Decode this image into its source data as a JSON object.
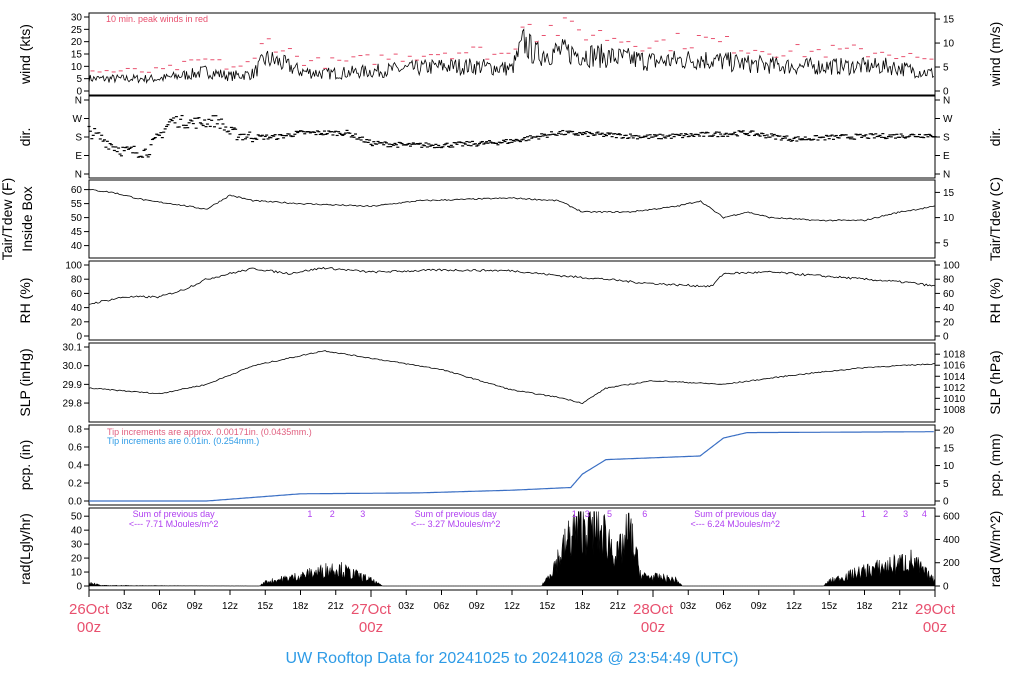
{
  "title": "UW Rooftop Data for 20241025  to  20241028 @ 23:54:49  (UTC)",
  "colors": {
    "peak": "#e8506e",
    "pcp_line": "#3a6fc4",
    "pcp_note_red": "#e06080",
    "pcp_note_blue": "#2e9be6",
    "rad_note": "#b040f0",
    "date_label": "#e8506e",
    "title": "#2e9be6"
  },
  "chart_data": [
    {
      "type": "line",
      "id": "wind",
      "ylabel": "wind (kts)",
      "ylabel_right": "wind (m/s)",
      "ylim": [
        0,
        30
      ],
      "yticks": [
        0,
        5,
        10,
        15,
        20,
        25,
        30
      ],
      "ylim_right": [
        0,
        15
      ],
      "yticks_right": [
        0,
        5,
        10,
        15
      ],
      "annotation": "10 min. peak winds in red",
      "x": [
        0,
        6,
        9,
        10,
        12,
        14,
        15,
        16,
        18,
        20,
        24,
        27,
        30,
        33,
        36,
        37,
        38,
        40,
        44,
        48,
        52,
        56,
        60,
        64,
        68,
        72
      ],
      "values": [
        5,
        5,
        7,
        8,
        6,
        7,
        13,
        12,
        8,
        7,
        8,
        9,
        10,
        10,
        9,
        20,
        15,
        16,
        14,
        12,
        13,
        11,
        10,
        10,
        10,
        7
      ]
    },
    {
      "type": "scatter",
      "id": "dir",
      "ylabel": "dir.",
      "ylabel_right": "dir.",
      "ylim": [
        0,
        360
      ],
      "yticks_labels": [
        "N",
        "E",
        "S",
        "W",
        "N"
      ],
      "x": [
        0,
        2,
        3,
        5,
        7,
        9,
        11,
        12,
        14,
        16,
        18,
        22,
        24,
        27,
        30,
        34,
        36,
        40,
        44,
        48,
        52,
        56,
        60,
        64,
        68,
        72
      ],
      "values": [
        210,
        140,
        110,
        110,
        260,
        250,
        260,
        200,
        180,
        180,
        200,
        200,
        150,
        140,
        140,
        150,
        160,
        200,
        190,
        180,
        190,
        200,
        170,
        180,
        185,
        190
      ]
    },
    {
      "type": "line",
      "id": "temp",
      "ylabel": "Tair/Tdew (F)",
      "ylabel2": "Inside Box",
      "ylabel_right": "Tair/Tdew (C)",
      "ylim": [
        37,
        62
      ],
      "yticks": [
        40,
        45,
        50,
        55,
        60
      ],
      "yticks_right": [
        5,
        10,
        15
      ],
      "x": [
        0,
        2,
        5,
        7,
        10,
        12,
        14,
        18,
        24,
        28,
        36,
        40,
        42,
        46,
        50,
        52,
        54,
        56,
        58,
        62,
        66,
        69,
        72
      ],
      "values": [
        60,
        59,
        56,
        55,
        53,
        58,
        56,
        55,
        54,
        56,
        57,
        56,
        52,
        52,
        54,
        56,
        50,
        52,
        50,
        49,
        49,
        52,
        54
      ]
    },
    {
      "type": "line",
      "id": "rh",
      "ylabel": "RH (%)",
      "ylabel_right": "RH (%)",
      "ylim": [
        0,
        100
      ],
      "yticks": [
        0,
        20,
        40,
        60,
        80,
        100
      ],
      "x": [
        0,
        3,
        6,
        8,
        10,
        12,
        14,
        17,
        20,
        24,
        30,
        36,
        40,
        44,
        47,
        50,
        53,
        54,
        58,
        62,
        66,
        70,
        72
      ],
      "values": [
        45,
        55,
        55,
        65,
        80,
        88,
        95,
        88,
        96,
        90,
        93,
        92,
        85,
        80,
        75,
        72,
        70,
        88,
        90,
        85,
        80,
        75,
        70
      ]
    },
    {
      "type": "line",
      "id": "slp",
      "ylabel": "SLP (inHg)",
      "ylabel_right": "SLP (hPa)",
      "ylim": [
        29.72,
        30.1
      ],
      "yticks": [
        29.8,
        29.9,
        30.0,
        30.1
      ],
      "yticks_right": [
        1008,
        1010,
        1012,
        1014,
        1016,
        1018
      ],
      "x": [
        0,
        6,
        10,
        14,
        20,
        24,
        30,
        36,
        40,
        42,
        44,
        48,
        54,
        60,
        66,
        72
      ],
      "values": [
        29.88,
        29.85,
        29.9,
        30.0,
        30.08,
        30.04,
        29.98,
        29.87,
        29.83,
        29.8,
        29.88,
        29.92,
        29.9,
        29.95,
        29.99,
        30.01
      ]
    },
    {
      "type": "line",
      "id": "pcp",
      "ylabel": "pcp. (in)",
      "ylabel_right": "pcp. (mm)",
      "ylim": [
        0,
        0.8
      ],
      "yticks": [
        0.0,
        0.2,
        0.4,
        0.6,
        0.8
      ],
      "yticks_right": [
        0,
        5,
        10,
        15,
        20
      ],
      "notes": [
        "Tip increments are approx. 0.00171in. (0.0435mm.)",
        "Tip increments are 0.01in. (0.254mm.)"
      ],
      "x": [
        0,
        10,
        13,
        18,
        28,
        36,
        41,
        42,
        44,
        52,
        54,
        56,
        72
      ],
      "values": [
        0,
        0,
        0.03,
        0.08,
        0.09,
        0.12,
        0.15,
        0.3,
        0.46,
        0.5,
        0.7,
        0.76,
        0.77
      ]
    },
    {
      "type": "area",
      "id": "rad",
      "ylabel": "rad(Lgly/hr)",
      "ylabel_right": "rad (W/m^2)",
      "ylim": [
        0,
        53
      ],
      "yticks": [
        0,
        10,
        20,
        30,
        40,
        50
      ],
      "yticks_right": [
        0,
        200,
        400,
        600
      ],
      "x": [
        0,
        1,
        14.5,
        15,
        18,
        21,
        24,
        25,
        38.5,
        39,
        41,
        42,
        44,
        45,
        46,
        47,
        49,
        50,
        50.5,
        62.5,
        63,
        66,
        68,
        70,
        72
      ],
      "values_wm2": [
        40,
        5,
        0,
        40,
        100,
        180,
        60,
        0,
        0,
        80,
        500,
        650,
        500,
        300,
        550,
        100,
        80,
        60,
        0,
        0,
        50,
        150,
        200,
        250,
        50
      ],
      "day_sums": [
        {
          "hour": 7.2,
          "line1": "Sum of previous day",
          "line2": "<--- 7.71 MJoules/m^2"
        },
        {
          "hour": 31.2,
          "line1": "Sum of previous day",
          "line2": "<--- 3.27 MJoules/m^2"
        },
        {
          "hour": 55,
          "line1": "Sum of previous day",
          "line2": "<--- 6.24 MJoules/m^2"
        }
      ],
      "marks": [
        {
          "hour": 18.8,
          "label": "1"
        },
        {
          "hour": 20.7,
          "label": "2"
        },
        {
          "hour": 23.3,
          "label": "3"
        },
        {
          "hour": 41.3,
          "label": "1"
        },
        {
          "hour": 42.4,
          "label": "3"
        },
        {
          "hour": 44.3,
          "label": "5"
        },
        {
          "hour": 47.3,
          "label": "6"
        },
        {
          "hour": 65.9,
          "label": "1"
        },
        {
          "hour": 67.8,
          "label": "2"
        },
        {
          "hour": 69.5,
          "label": "3"
        },
        {
          "hour": 71.1,
          "label": "4"
        }
      ]
    }
  ],
  "xaxis": {
    "hours": [
      3,
      6,
      9,
      12,
      15,
      18,
      21,
      27,
      30,
      33,
      36,
      39,
      42,
      45,
      51,
      54,
      57,
      60,
      63,
      66,
      69
    ],
    "labels": [
      "03z",
      "06z",
      "09z",
      "12z",
      "15z",
      "18z",
      "21z",
      "03z",
      "06z",
      "09z",
      "12z",
      "15z",
      "18z",
      "21z",
      "03z",
      "06z",
      "09z",
      "12z",
      "15z",
      "18z",
      "21z"
    ],
    "dates": [
      {
        "hour": 0,
        "day": "26Oct",
        "time": "00z"
      },
      {
        "hour": 24,
        "day": "27Oct",
        "time": "00z"
      },
      {
        "hour": 48,
        "day": "28Oct",
        "time": "00z"
      },
      {
        "hour": 72,
        "day": "29Oct",
        "time": "00z"
      }
    ]
  }
}
